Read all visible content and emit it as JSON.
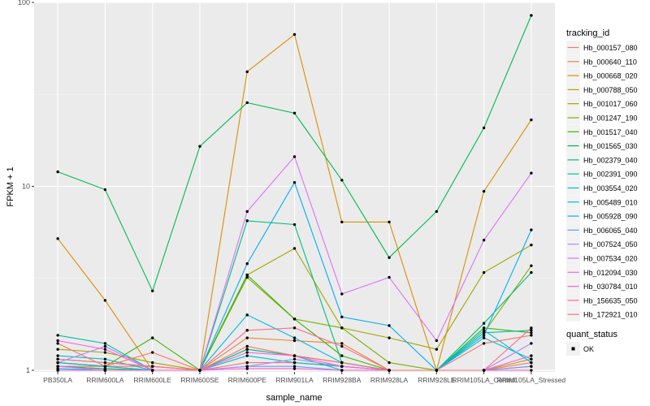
{
  "chart_data": {
    "type": "line",
    "xlabel": "sample_name",
    "ylabel": "FPKM + 1",
    "y_scale": "log10",
    "ylim": [
      0.98,
      100
    ],
    "y_ticks": [
      1,
      10,
      100
    ],
    "y_tick_labels": [
      "1",
      "10",
      "100"
    ],
    "grid": true,
    "legend_position": "right",
    "categories": [
      "PB350LA",
      "RRIM600LA",
      "RRIM600LE",
      "RRIM600SE",
      "RRIM600PE",
      "RRIM901LA",
      "RRIM928BA",
      "RRIM928LA",
      "RRIM928LE",
      "RRIM105LA_Control",
      "RRIM105LA_Stressed"
    ],
    "category_labels": [
      "PB350LA",
      "RRIM600LA",
      "RRIM600LE",
      "RRIM600SE",
      "RRIM600PE",
      "RRIM901LA",
      "RRIM928BA",
      "RRIM928LA",
      "RRIM928LE",
      "RRIM105LA_Control",
      "RRIM105LA_Stressed"
    ],
    "legend_title": "tracking_id",
    "series": [
      {
        "name": "Hb_000157_080",
        "color": "#F8766D",
        "values": [
          1.05,
          1.05,
          1.05,
          1.0,
          1.1,
          1.1,
          1.05,
          1.0,
          1.0,
          1.0,
          1.1
        ]
      },
      {
        "name": "Hb_000640_110",
        "color": "#EA8331",
        "values": [
          1.05,
          1.02,
          1.0,
          1.0,
          1.5,
          1.45,
          1.4,
          1.0,
          1.0,
          1.0,
          1.05
        ]
      },
      {
        "name": "Hb_000668_020",
        "color": "#D89000",
        "values": [
          5.2,
          2.4,
          1.0,
          1.0,
          42.0,
          67.0,
          6.4,
          6.4,
          1.0,
          9.4,
          23.0
        ]
      },
      {
        "name": "Hb_000788_050",
        "color": "#C09B00",
        "values": [
          1.1,
          1.05,
          1.0,
          1.0,
          1.3,
          1.2,
          1.1,
          1.0,
          1.0,
          1.0,
          1.15
        ]
      },
      {
        "name": "Hb_001017_060",
        "color": "#A3A500",
        "values": [
          1.3,
          1.25,
          1.1,
          1.0,
          3.3,
          4.6,
          1.7,
          1.5,
          1.3,
          3.4,
          4.8
        ]
      },
      {
        "name": "Hb_001247_190",
        "color": "#7CAE00",
        "values": [
          1.15,
          1.1,
          1.05,
          1.0,
          3.2,
          1.9,
          1.7,
          1.1,
          1.0,
          1.6,
          3.7
        ]
      },
      {
        "name": "Hb_001517_040",
        "color": "#39B600",
        "values": [
          1.1,
          1.05,
          1.5,
          1.0,
          3.3,
          1.9,
          1.2,
          1.0,
          1.0,
          1.7,
          1.6
        ]
      },
      {
        "name": "Hb_001565_030",
        "color": "#00BB4E",
        "values": [
          12.0,
          9.6,
          2.7,
          16.5,
          28.5,
          25.0,
          10.8,
          4.1,
          7.3,
          20.8,
          85.0
        ]
      },
      {
        "name": "Hb_002379_040",
        "color": "#00BF7D",
        "values": [
          1.05,
          1.02,
          1.0,
          1.0,
          6.5,
          6.2,
          1.1,
          1.0,
          1.0,
          1.8,
          3.4
        ]
      },
      {
        "name": "Hb_002391_090",
        "color": "#00C1A3",
        "values": [
          1.55,
          1.4,
          1.0,
          1.0,
          1.3,
          1.2,
          1.0,
          1.0,
          1.0,
          1.6,
          1.65
        ]
      },
      {
        "name": "Hb_003554_020",
        "color": "#00BFC4",
        "values": [
          1.2,
          1.15,
          1.0,
          1.0,
          1.2,
          1.1,
          1.05,
          1.0,
          1.0,
          1.5,
          1.15
        ]
      },
      {
        "name": "Hb_005489_010",
        "color": "#00B9E3",
        "values": [
          1.1,
          1.05,
          1.0,
          1.0,
          2.0,
          1.5,
          1.1,
          1.0,
          1.0,
          1.65,
          1.1
        ]
      },
      {
        "name": "Hb_005928_090",
        "color": "#00ADFA",
        "values": [
          1.02,
          1.0,
          1.0,
          1.0,
          3.8,
          10.5,
          1.95,
          1.75,
          1.0,
          1.55,
          5.8
        ]
      },
      {
        "name": "Hb_006065_040",
        "color": "#619CFF",
        "values": [
          1.0,
          1.0,
          1.0,
          1.0,
          1.05,
          1.05,
          1.0,
          1.0,
          1.0,
          1.0,
          1.05
        ]
      },
      {
        "name": "Hb_007524_050",
        "color": "#AE87FF",
        "values": [
          1.1,
          1.35,
          1.0,
          1.0,
          1.05,
          1.15,
          1.05,
          1.0,
          1.0,
          1.0,
          1.4
        ]
      },
      {
        "name": "Hb_007534_020",
        "color": "#DB72FB",
        "values": [
          1.05,
          1.0,
          1.0,
          1.0,
          7.3,
          14.5,
          2.6,
          3.2,
          1.45,
          5.1,
          11.8
        ]
      },
      {
        "name": "Hb_012094_030",
        "color": "#F564E3",
        "values": [
          1.45,
          1.3,
          1.0,
          1.0,
          1.25,
          1.2,
          1.05,
          1.0,
          1.0,
          1.0,
          1.2
        ]
      },
      {
        "name": "Hb_030784_010",
        "color": "#FF61C3",
        "values": [
          1.0,
          1.0,
          1.0,
          1.0,
          1.02,
          1.02,
          1.0,
          1.0,
          1.0,
          1.0,
          1.0
        ]
      },
      {
        "name": "Hb_156635_050",
        "color": "#FF6C91",
        "values": [
          1.15,
          1.1,
          1.05,
          1.0,
          1.65,
          1.7,
          1.35,
          1.0,
          1.0,
          1.0,
          1.7
        ]
      },
      {
        "name": "Hb_172921_010",
        "color": "#F8766D",
        "values": [
          1.4,
          1.05,
          1.25,
          1.0,
          1.35,
          1.2,
          1.1,
          1.0,
          1.0,
          1.4,
          1.55
        ]
      }
    ],
    "legend2": {
      "title": "quant_status",
      "items": [
        "OK"
      ]
    }
  }
}
